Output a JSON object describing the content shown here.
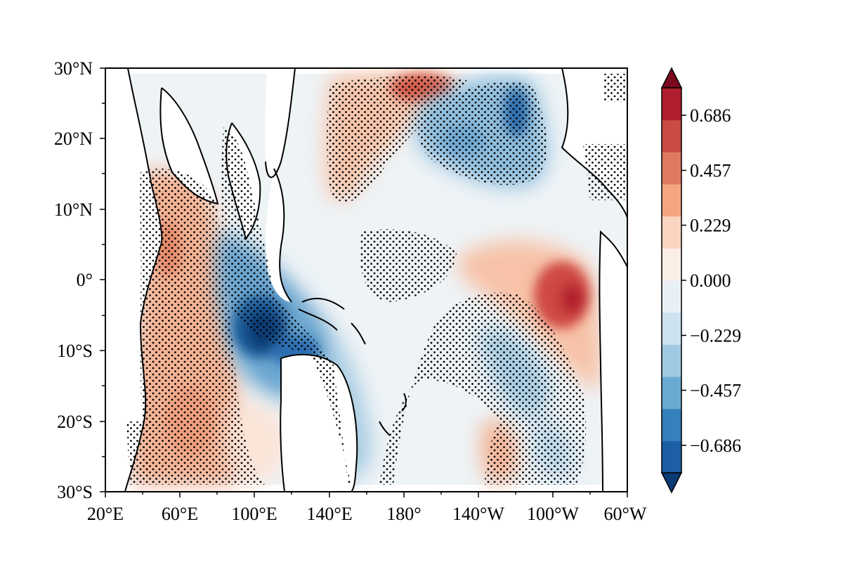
{
  "chart_data": {
    "type": "map-contour",
    "title": "",
    "xlabel": "",
    "ylabel": "",
    "x_ticks": [
      "20°E",
      "60°E",
      "100°E",
      "140°E",
      "180°",
      "140°W",
      "100°W",
      "60°W"
    ],
    "y_ticks": [
      "30°N",
      "20°N",
      "10°N",
      "0°",
      "10°S",
      "20°S",
      "30°S"
    ],
    "lon_range_deg": [
      20,
      300
    ],
    "lat_range_deg": [
      -30,
      30
    ],
    "colorbar": {
      "tick_labels": [
        "0.686",
        "0.457",
        "0.229",
        "0.000",
        "−0.229",
        "−0.457",
        "−0.686"
      ],
      "tick_values": [
        0.686,
        0.457,
        0.229,
        0.0,
        -0.229,
        -0.457,
        -0.686
      ],
      "levels": 14,
      "extend": "both",
      "colormap": "RdBu_r",
      "colors": [
        "#0b3b75",
        "#1c5fa5",
        "#3581bb",
        "#6aabd2",
        "#9fcae1",
        "#cde2ef",
        "#e8f0f5",
        "#fbeee6",
        "#fbd4c1",
        "#f3a680",
        "#df7a60",
        "#c84c43",
        "#b01e2f",
        "#7c0a1f"
      ]
    },
    "stippling": "dots mark statistically significant regions",
    "field_features": [
      {
        "region": "Indian Ocean (west/central)",
        "sign": "positive",
        "peak": 0.4
      },
      {
        "region": "Maritime Continent / eastern Indian Ocean",
        "sign": "negative",
        "peak": -0.75
      },
      {
        "region": "North Pacific near 180°, 25°N",
        "sign": "positive",
        "peak": 0.55
      },
      {
        "region": "Northeast Pacific 120°W, 25°N",
        "sign": "negative",
        "peak": -0.55
      },
      {
        "region": "Eastern equatorial Pacific 95°W, 5°S",
        "sign": "positive",
        "peak": 0.65
      },
      {
        "region": "South Pacific 160°E–120°W",
        "sign": "negative",
        "peak": -0.35
      }
    ]
  }
}
